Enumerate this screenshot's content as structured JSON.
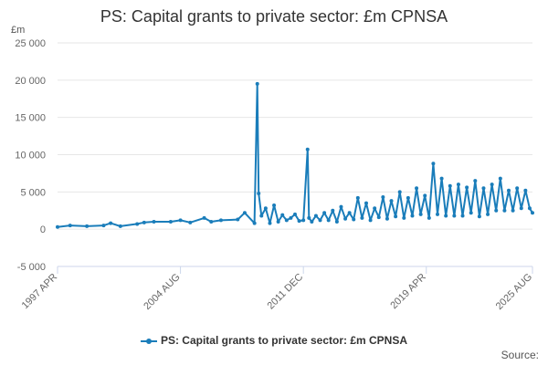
{
  "colors": {
    "series": "#1a7dba",
    "grid": "#e6e6e6",
    "axis": "#ccd6eb",
    "text": "#666666"
  },
  "footer": {
    "source_label": "Source:"
  },
  "chart_data": {
    "type": "line",
    "title": "PS: Capital grants to private sector: £m CPNSA",
    "ylabel": "£m",
    "xlabel": "",
    "ylim": [
      -5000,
      25000
    ],
    "yticks": [
      -5000,
      0,
      5000,
      10000,
      15000,
      20000,
      25000
    ],
    "ytick_labels": [
      "-5 000",
      "0",
      "5 000",
      "10 000",
      "15 000",
      "20 000",
      "25 000"
    ],
    "xlim": [
      "1997-04",
      "2025-08"
    ],
    "xticks": [
      "1997-04",
      "2004-08",
      "2011-12",
      "2019-04",
      "2025-08"
    ],
    "xtick_labels": [
      "1997 APR",
      "2004 AUG",
      "2011 DEC",
      "2019 APR",
      "2025 AUG"
    ],
    "grid": true,
    "legend_position": "bottom",
    "series": [
      {
        "name": "PS: Capital grants to private sector: £m CPNSA",
        "x": [
          "1997-04",
          "1998-01",
          "1999-01",
          "2000-01",
          "2000-06",
          "2001-01",
          "2002-01",
          "2002-06",
          "2003-01",
          "2004-01",
          "2004-08",
          "2005-03",
          "2006-01",
          "2006-06",
          "2007-01",
          "2008-01",
          "2008-06",
          "2009-01",
          "2009-03",
          "2009-04",
          "2009-06",
          "2009-09",
          "2009-12",
          "2010-03",
          "2010-06",
          "2010-09",
          "2010-12",
          "2011-03",
          "2011-06",
          "2011-09",
          "2011-12",
          "2012-03",
          "2012-04",
          "2012-06",
          "2012-09",
          "2012-12",
          "2013-03",
          "2013-06",
          "2013-09",
          "2013-12",
          "2014-03",
          "2014-06",
          "2014-09",
          "2014-12",
          "2015-03",
          "2015-06",
          "2015-09",
          "2015-12",
          "2016-03",
          "2016-06",
          "2016-09",
          "2016-12",
          "2017-03",
          "2017-06",
          "2017-09",
          "2017-12",
          "2018-03",
          "2018-06",
          "2018-09",
          "2018-12",
          "2019-03",
          "2019-06",
          "2019-09",
          "2019-12",
          "2020-03",
          "2020-06",
          "2020-09",
          "2020-12",
          "2021-03",
          "2021-06",
          "2021-09",
          "2021-12",
          "2022-03",
          "2022-06",
          "2022-09",
          "2022-12",
          "2023-03",
          "2023-06",
          "2023-09",
          "2023-12",
          "2024-03",
          "2024-06",
          "2024-09",
          "2024-12",
          "2025-03",
          "2025-06",
          "2025-08"
        ],
        "values": [
          300,
          500,
          400,
          500,
          800,
          400,
          700,
          900,
          1000,
          1000,
          1200,
          900,
          1500,
          1000,
          1200,
          1300,
          2200,
          800,
          19500,
          4800,
          1800,
          2800,
          800,
          3200,
          1000,
          1900,
          1200,
          1500,
          2000,
          1100,
          1200,
          10700,
          1500,
          1000,
          1800,
          1200,
          2200,
          1200,
          2500,
          1000,
          3000,
          1400,
          2200,
          1300,
          4200,
          1500,
          3500,
          1200,
          2800,
          1600,
          4300,
          1400,
          3800,
          1700,
          5000,
          1500,
          4200,
          1800,
          5500,
          2000,
          4500,
          1500,
          8800,
          2000,
          6800,
          1800,
          5800,
          1800,
          6000,
          1800,
          5600,
          2200,
          6500,
          1700,
          5500,
          2000,
          6000,
          2500,
          6800,
          2500,
          5200,
          2500,
          5500,
          2800,
          5200,
          2800,
          2200
        ]
      }
    ]
  }
}
